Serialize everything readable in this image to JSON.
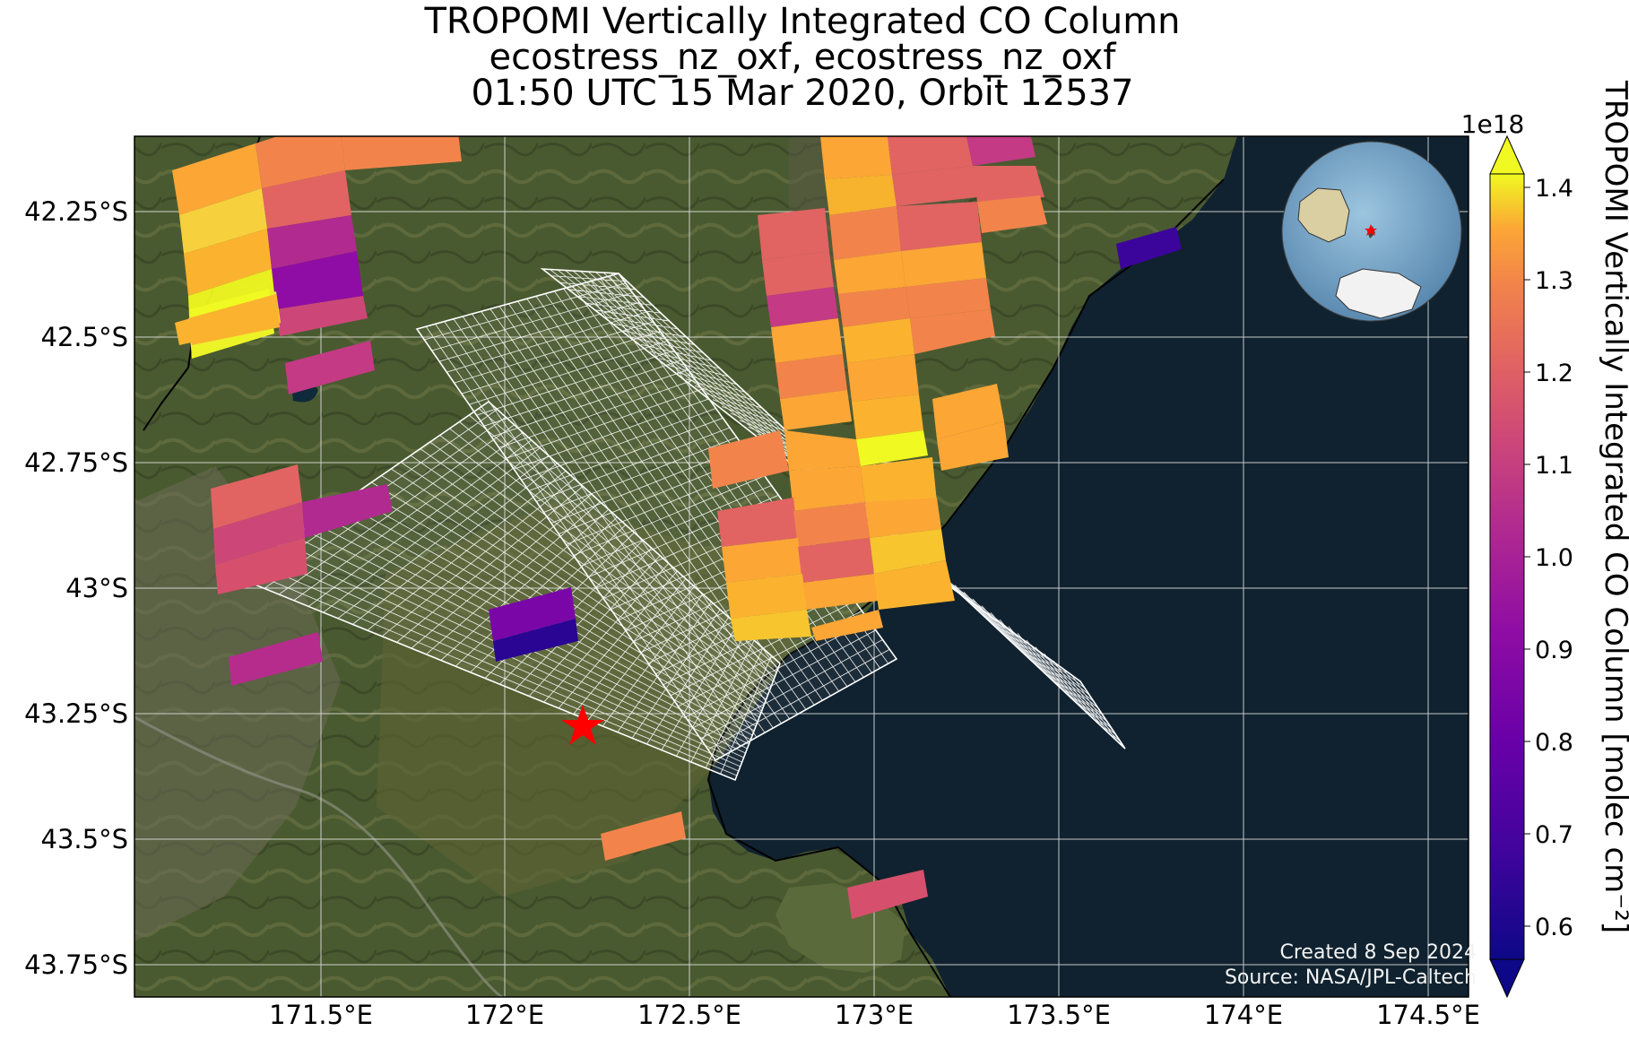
{
  "title": {
    "line1": "TROPOMI Vertically Integrated CO Column",
    "line2": "ecostress_nz_oxf, ecostress_nz_oxf",
    "line3": "01:50 UTC 15 Mar 2020, Orbit 12537"
  },
  "axes": {
    "lon_ticks": [
      "171.5°E",
      "172°E",
      "172.5°E",
      "173°E",
      "173.5°E",
      "174°E",
      "174.5°E"
    ],
    "lat_ticks": [
      "42.25°S",
      "42.5°S",
      "42.75°S",
      "43°S",
      "43.25°S",
      "43.5°S",
      "43.75°S"
    ]
  },
  "colorbar": {
    "label": "TROPOMI Vertically Integrated CO Column [molec cm⁻²]",
    "multiplier": "1e18",
    "ticks": [
      "0.6",
      "0.7",
      "0.8",
      "0.9",
      "1.0",
      "1.1",
      "1.2",
      "1.3",
      "1.4"
    ],
    "colormap": "plasma",
    "extend": "both"
  },
  "credits": {
    "created": "Created 8 Sep 2024",
    "source": "Source: NASA/JPL-Caltech"
  },
  "site_marker": {
    "lon": 172.2,
    "lat": -43.26,
    "color": "#ff0000",
    "icon": "star"
  },
  "inset": {
    "description": "globe-inset",
    "marker_color": "#ff0000"
  },
  "colors": {
    "ocean": "#10222f",
    "land": "#4b5a32",
    "grid": "#e8e8e8",
    "footprint": "#ffffff"
  }
}
